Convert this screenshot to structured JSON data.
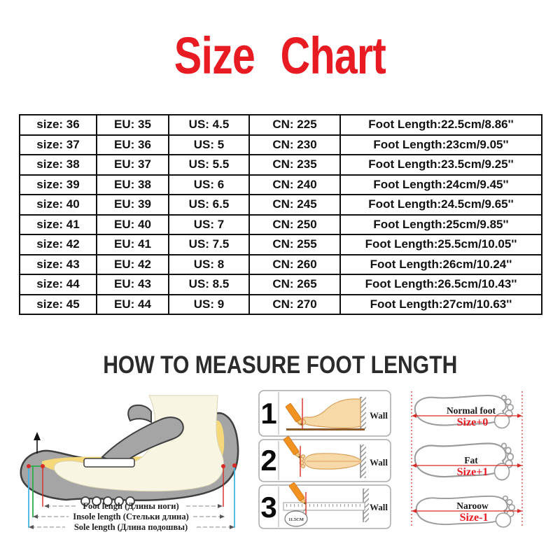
{
  "title": "Size Chart",
  "size_table": {
    "rows": [
      [
        "size: 36",
        "EU: 35",
        "US: 4.5",
        "CN: 225",
        "Foot Length:22.5cm/8.86''"
      ],
      [
        "size: 37",
        "EU: 36",
        "US: 5",
        "CN: 230",
        "Foot Length:23cm/9.05''"
      ],
      [
        "size: 38",
        "EU: 37",
        "US: 5.5",
        "CN: 235",
        "Foot Length:23.5cm/9.25''"
      ],
      [
        "size: 39",
        "EU: 38",
        "US: 6",
        "CN: 240",
        "Foot Length:24cm/9.45''"
      ],
      [
        "size: 40",
        "EU: 39",
        "US: 6.5",
        "CN: 245",
        "Foot Length:24.5cm/9.65''"
      ],
      [
        "size: 41",
        "EU: 40",
        "US: 7",
        "CN: 250",
        "Foot Length:25cm/9.85''"
      ],
      [
        "size: 42",
        "EU: 41",
        "US: 7.5",
        "CN: 255",
        "Foot Length:25.5cm/10.05''"
      ],
      [
        "size: 43",
        "EU: 42",
        "US: 8",
        "CN: 260",
        "Foot Length:26cm/10.24''"
      ],
      [
        "size: 44",
        "EU: 43",
        "US: 8.5",
        "CN: 265",
        "Foot Length:26.5cm/10.43''"
      ],
      [
        "size: 45",
        "EU: 44",
        "US: 9",
        "CN: 270",
        "Foot Length:27cm/10.63''"
      ]
    ]
  },
  "measure_section": {
    "heading": "HOW TO MEASURE FOOT LENGTH",
    "shoe_labels": {
      "foot_length": "Foot lengh (Длины ноги)",
      "insole_length": "Insole length (Стельки длина)",
      "sole_length": "Sole length (Длина подошвы)"
    },
    "steps": [
      {
        "number": "1",
        "wall_label": "Wall"
      },
      {
        "number": "2",
        "wall_label": "Wall"
      },
      {
        "number": "3",
        "wall_label": "Wall",
        "ruler_mark": "11.5CM"
      }
    ],
    "foot_types": [
      {
        "name": "Normal foot",
        "size_note": "Size+0"
      },
      {
        "name": "Fat",
        "size_note": "Size+1"
      },
      {
        "name": "Naroow",
        "size_note": "Size-1"
      }
    ]
  },
  "colors": {
    "title_red": "#e81b23",
    "accent_red": "#d92b25",
    "pencil_orange": "#f29220",
    "insole_yellow": "#f5d879",
    "foot_cream": "#f8f5e2",
    "sole_gray": "#a5a5a5",
    "skin": "#f7d9a8",
    "measure_green": "#2faa4e",
    "measure_blue": "#45b4e6",
    "ground_brown": "#8a5a2b"
  }
}
